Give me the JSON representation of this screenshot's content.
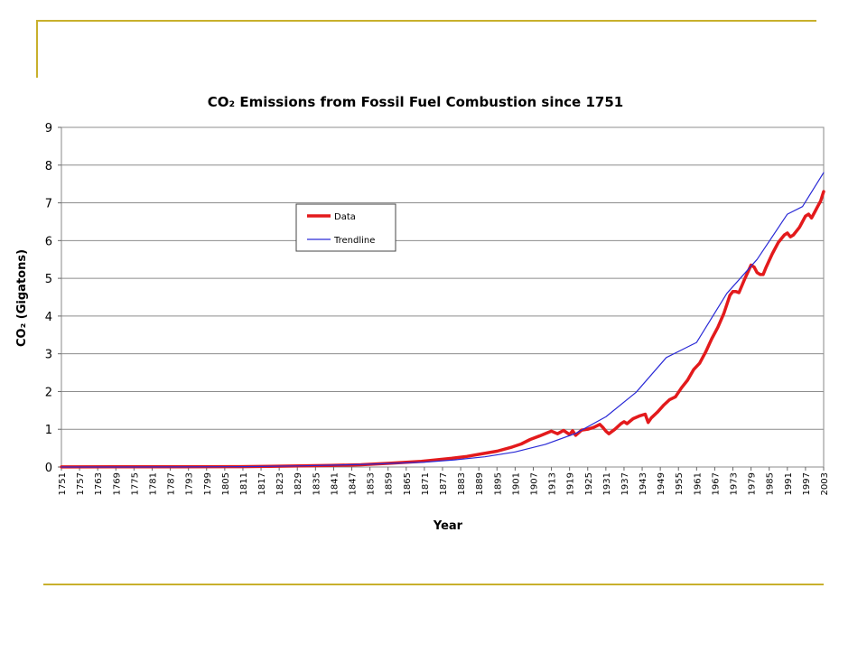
{
  "slide": {
    "accent_color": "#c8b02c"
  },
  "chart_data": {
    "type": "line",
    "title": "CO₂ Emissions from Fossil Fuel Combustion since 1751",
    "xlabel": "Year",
    "ylabel": "CO₂ (Gigatons)",
    "xlim": [
      1751,
      2003
    ],
    "ylim": [
      0,
      9
    ],
    "y_ticks": [
      "0",
      "1",
      "2",
      "3",
      "4",
      "5",
      "6",
      "7",
      "8",
      "9"
    ],
    "x_ticks": [
      "1751",
      "1757",
      "1763",
      "1769",
      "1775",
      "1781",
      "1787",
      "1793",
      "1799",
      "1805",
      "1811",
      "1817",
      "1823",
      "1829",
      "1835",
      "1841",
      "1847",
      "1853",
      "1859",
      "1865",
      "1871",
      "1877",
      "1883",
      "1889",
      "1895",
      "1901",
      "1907",
      "1913",
      "1919",
      "1925",
      "1931",
      "1937",
      "1943",
      "1949",
      "1955",
      "1961",
      "1967",
      "1973",
      "1979",
      "1985",
      "1991",
      "1997",
      "2003"
    ],
    "grid": true,
    "legend_placement": "upper-middle",
    "series": [
      {
        "name": "Data",
        "color": "#e31a1c",
        "style": "thick",
        "x": [
          1751,
          1770,
          1790,
          1810,
          1820,
          1830,
          1840,
          1850,
          1860,
          1870,
          1880,
          1885,
          1890,
          1895,
          1900,
          1903,
          1906,
          1909,
          1912,
          1913,
          1915,
          1917,
          1919,
          1920,
          1921,
          1923,
          1925,
          1927,
          1929,
          1930,
          1931,
          1932,
          1934,
          1936,
          1937,
          1938,
          1940,
          1942,
          1944,
          1945,
          1946,
          1948,
          1950,
          1952,
          1954,
          1956,
          1958,
          1960,
          1962,
          1964,
          1966,
          1968,
          1970,
          1972,
          1973,
          1974,
          1975,
          1977,
          1979,
          1980,
          1981,
          1982,
          1983,
          1984,
          1986,
          1988,
          1990,
          1991,
          1992,
          1993,
          1995,
          1997,
          1998,
          1999,
          2000,
          2001,
          2002,
          2003
        ],
        "values": [
          0.003,
          0.004,
          0.005,
          0.01,
          0.02,
          0.03,
          0.04,
          0.06,
          0.1,
          0.15,
          0.23,
          0.28,
          0.35,
          0.42,
          0.53,
          0.61,
          0.73,
          0.82,
          0.92,
          0.95,
          0.88,
          0.97,
          0.86,
          0.96,
          0.84,
          0.98,
          1.0,
          1.05,
          1.13,
          1.05,
          0.95,
          0.88,
          1.0,
          1.15,
          1.2,
          1.15,
          1.28,
          1.35,
          1.4,
          1.18,
          1.3,
          1.45,
          1.63,
          1.78,
          1.86,
          2.1,
          2.3,
          2.58,
          2.75,
          3.05,
          3.4,
          3.7,
          4.07,
          4.55,
          4.65,
          4.65,
          4.62,
          5.0,
          5.35,
          5.3,
          5.15,
          5.1,
          5.1,
          5.3,
          5.65,
          5.95,
          6.15,
          6.2,
          6.1,
          6.15,
          6.35,
          6.65,
          6.7,
          6.6,
          6.75,
          6.9,
          7.05,
          7.3
        ]
      },
      {
        "name": "Trendline",
        "color": "#2a2ad6",
        "style": "thin",
        "x": [
          1751,
          1771,
          1791,
          1811,
          1831,
          1851,
          1871,
          1881,
          1891,
          1901,
          1911,
          1921,
          1931,
          1941,
          1951,
          1961,
          1971,
          1981,
          1991,
          1996,
          2003
        ],
        "values": [
          0.00035,
          0.001,
          0.0032,
          0.01,
          0.03,
          0.07,
          0.13,
          0.19,
          0.27,
          0.4,
          0.6,
          0.89,
          1.33,
          1.98,
          2.9,
          3.3,
          4.6,
          5.5,
          6.7,
          6.9,
          7.8
        ]
      }
    ]
  }
}
